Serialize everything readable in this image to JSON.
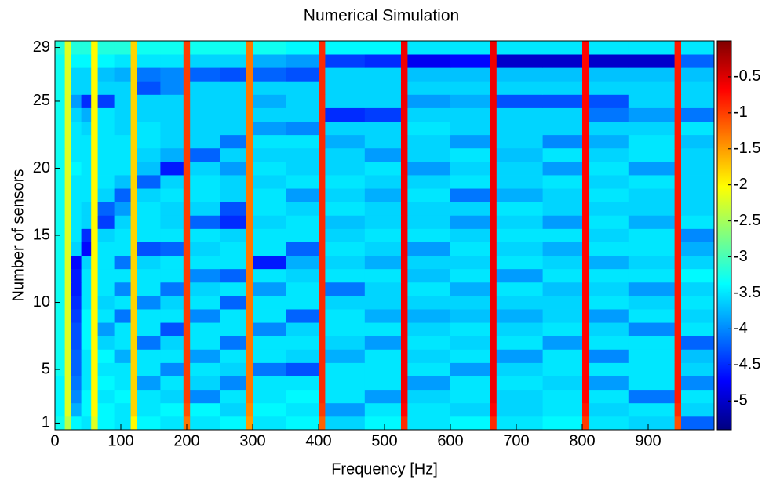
{
  "chart_data": {
    "type": "heatmap",
    "title": "Numerical Simulation",
    "x_label": "Frequency [Hz]",
    "y_label": "Number of sensors",
    "colormap": "jet",
    "clim": [
      -5.4,
      0
    ],
    "cticks": [
      -0.5,
      -1,
      -1.5,
      -2,
      -2.5,
      -3,
      -3.5,
      -4,
      -4.5,
      -5
    ],
    "xlim": [
      0,
      1000
    ],
    "xticks": [
      0,
      100,
      200,
      300,
      400,
      500,
      600,
      700,
      800,
      900
    ],
    "ylim": [
      0.5,
      29.5
    ],
    "yticks": [
      1,
      5,
      10,
      15,
      20,
      25,
      29
    ],
    "x_edges": [
      0,
      15,
      25,
      40,
      55,
      65,
      90,
      115,
      125,
      160,
      195,
      205,
      250,
      290,
      300,
      350,
      400,
      410,
      470,
      525,
      535,
      600,
      660,
      670,
      740,
      800,
      810,
      870,
      940,
      950,
      1000
    ],
    "y": [
      1,
      2,
      3,
      4,
      5,
      6,
      7,
      8,
      9,
      10,
      11,
      12,
      13,
      14,
      15,
      16,
      17,
      18,
      19,
      20,
      21,
      22,
      23,
      24,
      25,
      26,
      27,
      28,
      29
    ],
    "values": [
      [
        -3.3,
        -2.4,
        -3.4,
        -3.5,
        -2.2,
        -3.4,
        -3.5,
        -2.0,
        -3.4,
        -3.5,
        -1.3,
        -3.5,
        -3.4,
        -1.5,
        -3.5,
        -3.4,
        -1.2,
        -3.6,
        -3.4,
        -0.9,
        -3.5,
        -3.4,
        -0.9,
        -3.5,
        -3.4,
        -1.0,
        -3.5,
        -3.6,
        -1.1,
        -4.2
      ],
      [
        -3.4,
        -2.2,
        -3.8,
        -3.4,
        -2.0,
        -3.4,
        -3.5,
        -1.8,
        -3.5,
        -3.4,
        -1.1,
        -3.4,
        -3.6,
        -1.4,
        -3.4,
        -3.5,
        -1.0,
        -3.9,
        -3.5,
        -0.7,
        -3.5,
        -3.6,
        -0.7,
        -3.6,
        -3.5,
        -0.8,
        -3.6,
        -3.5,
        -0.9,
        -3.6
      ],
      [
        -3.4,
        -2.2,
        -4.0,
        -3.4,
        -2.0,
        -3.5,
        -3.4,
        -1.8,
        -3.5,
        -3.6,
        -1.0,
        -4.0,
        -3.5,
        -1.3,
        -3.5,
        -3.4,
        -0.9,
        -3.5,
        -3.9,
        -0.6,
        -3.6,
        -3.5,
        -0.6,
        -3.6,
        -3.5,
        -0.7,
        -3.5,
        -4.1,
        -0.8,
        -3.5
      ],
      [
        -3.4,
        -2.2,
        -4.1,
        -3.5,
        -2.0,
        -3.4,
        -3.5,
        -1.8,
        -3.9,
        -3.5,
        -1.0,
        -3.6,
        -4.0,
        -1.3,
        -3.5,
        -3.5,
        -0.9,
        -3.5,
        -3.5,
        -0.6,
        -3.9,
        -3.5,
        -0.6,
        -3.5,
        -3.6,
        -0.7,
        -3.9,
        -3.5,
        -0.8,
        -4.0
      ],
      [
        -3.3,
        -2.2,
        -4.2,
        -3.5,
        -2.0,
        -3.5,
        -3.5,
        -1.8,
        -3.5,
        -4.0,
        -1.0,
        -3.5,
        -3.6,
        -1.3,
        -4.1,
        -4.3,
        -0.9,
        -3.5,
        -3.5,
        -0.6,
        -3.5,
        -3.9,
        -0.6,
        -3.6,
        -3.5,
        -0.7,
        -3.5,
        -3.5,
        -0.8,
        -3.6
      ],
      [
        -3.3,
        -2.2,
        -4.2,
        -3.5,
        -2.0,
        -3.4,
        -3.8,
        -1.8,
        -3.5,
        -3.5,
        -1.0,
        -3.9,
        -3.5,
        -1.3,
        -3.5,
        -3.6,
        -0.9,
        -3.8,
        -3.5,
        -0.6,
        -3.6,
        -3.5,
        -0.6,
        -3.9,
        -3.5,
        -0.7,
        -4.0,
        -3.5,
        -0.8,
        -3.7
      ],
      [
        -3.3,
        -2.2,
        -4.3,
        -3.4,
        -2.0,
        -3.6,
        -3.5,
        -1.8,
        -4.1,
        -3.6,
        -1.0,
        -3.5,
        -4.1,
        -1.3,
        -3.5,
        -3.5,
        -0.9,
        -3.6,
        -3.9,
        -0.6,
        -3.5,
        -3.6,
        -0.6,
        -3.5,
        -3.9,
        -0.7,
        -3.5,
        -3.5,
        -0.8,
        -4.2
      ],
      [
        -3.3,
        -2.2,
        -4.3,
        -3.4,
        -2.0,
        -3.9,
        -3.5,
        -1.8,
        -3.5,
        -4.3,
        -1.0,
        -3.5,
        -3.5,
        -1.3,
        -4.0,
        -3.6,
        -0.9,
        -3.5,
        -3.5,
        -0.6,
        -3.6,
        -3.5,
        -0.6,
        -3.6,
        -3.5,
        -0.7,
        -3.6,
        -4.0,
        -0.8,
        -3.5
      ],
      [
        -3.3,
        -2.2,
        -4.4,
        -3.4,
        -2.0,
        -3.5,
        -4.1,
        -1.8,
        -3.5,
        -3.5,
        -1.0,
        -4.0,
        -3.5,
        -1.3,
        -3.5,
        -4.2,
        -0.9,
        -3.5,
        -3.8,
        -0.6,
        -3.8,
        -3.7,
        -0.6,
        -3.8,
        -3.6,
        -0.7,
        -3.9,
        -3.5,
        -0.8,
        -3.6
      ],
      [
        -3.3,
        -2.2,
        -4.5,
        -3.5,
        -2.0,
        -3.6,
        -3.5,
        -1.8,
        -4.0,
        -3.6,
        -1.0,
        -3.5,
        -4.2,
        -1.3,
        -3.5,
        -3.5,
        -0.9,
        -3.6,
        -3.6,
        -0.6,
        -3.6,
        -3.6,
        -0.6,
        -3.6,
        -3.6,
        -0.7,
        -3.5,
        -3.6,
        -0.8,
        -3.5
      ],
      [
        -3.3,
        -2.2,
        -4.6,
        -3.5,
        -2.0,
        -3.5,
        -4.0,
        -1.8,
        -3.5,
        -4.1,
        -1.0,
        -3.6,
        -3.5,
        -1.3,
        -3.9,
        -3.5,
        -0.9,
        -4.1,
        -3.6,
        -0.6,
        -3.5,
        -3.8,
        -0.6,
        -3.5,
        -3.7,
        -0.7,
        -3.6,
        -3.9,
        -0.8,
        -3.6
      ],
      [
        -3.3,
        -2.2,
        -4.6,
        -3.5,
        -2.0,
        -3.5,
        -3.5,
        -1.8,
        -3.5,
        -3.5,
        -1.0,
        -4.0,
        -4.2,
        -1.3,
        -3.5,
        -3.6,
        -0.9,
        -3.5,
        -3.5,
        -0.6,
        -3.7,
        -3.5,
        -0.6,
        -3.9,
        -3.5,
        -0.7,
        -3.5,
        -3.5,
        -0.8,
        -3.4
      ],
      [
        -3.3,
        -2.2,
        -4.7,
        -3.6,
        -2.0,
        -3.5,
        -4.1,
        -1.8,
        -3.6,
        -3.5,
        -1.0,
        -3.5,
        -3.5,
        -1.3,
        -4.6,
        -3.8,
        -0.9,
        -3.6,
        -3.8,
        -0.6,
        -3.6,
        -3.6,
        -0.6,
        -3.5,
        -3.6,
        -0.7,
        -3.8,
        -3.6,
        -0.8,
        -3.6
      ],
      [
        -3.3,
        -2.2,
        -3.6,
        -4.7,
        -2.0,
        -3.5,
        -3.5,
        -1.8,
        -4.3,
        -4.2,
        -1.0,
        -3.6,
        -3.5,
        -1.3,
        -3.5,
        -4.2,
        -0.9,
        -3.5,
        -3.6,
        -0.6,
        -3.9,
        -3.5,
        -0.6,
        -3.6,
        -3.8,
        -0.7,
        -3.5,
        -3.5,
        -0.8,
        -3.8
      ],
      [
        -3.3,
        -2.2,
        -3.5,
        -4.5,
        -2.0,
        -3.6,
        -3.5,
        -1.8,
        -3.5,
        -3.5,
        -1.0,
        -3.5,
        -3.6,
        -1.3,
        -3.5,
        -3.5,
        -0.9,
        -3.6,
        -3.5,
        -0.6,
        -3.5,
        -3.6,
        -0.6,
        -3.5,
        -3.5,
        -0.7,
        -3.6,
        -3.5,
        -0.8,
        -4.0
      ],
      [
        -3.3,
        -2.2,
        -3.5,
        -3.6,
        -2.0,
        -4.4,
        -3.6,
        -1.8,
        -3.5,
        -3.6,
        -1.0,
        -4.2,
        -4.5,
        -1.3,
        -3.6,
        -3.5,
        -0.9,
        -3.7,
        -3.6,
        -0.6,
        -3.6,
        -3.9,
        -0.6,
        -3.6,
        -3.9,
        -0.7,
        -3.5,
        -3.8,
        -0.8,
        -3.5
      ],
      [
        -3.3,
        -2.2,
        -3.5,
        -3.6,
        -2.0,
        -4.2,
        -3.9,
        -1.8,
        -3.5,
        -3.6,
        -1.0,
        -3.6,
        -4.3,
        -1.3,
        -3.5,
        -3.6,
        -0.9,
        -3.5,
        -3.6,
        -0.6,
        -3.6,
        -3.6,
        -0.6,
        -3.5,
        -3.6,
        -0.7,
        -3.6,
        -3.6,
        -0.8,
        -3.6
      ],
      [
        -3.3,
        -2.2,
        -3.5,
        -3.5,
        -2.0,
        -3.6,
        -4.2,
        -1.8,
        -3.6,
        -3.5,
        -1.0,
        -3.5,
        -3.6,
        -1.3,
        -3.5,
        -3.9,
        -0.9,
        -3.6,
        -3.8,
        -0.6,
        -3.5,
        -4.1,
        -0.6,
        -3.8,
        -3.6,
        -0.7,
        -3.5,
        -3.6,
        -0.8,
        -3.6
      ],
      [
        -3.3,
        -2.2,
        -3.5,
        -3.5,
        -2.0,
        -3.5,
        -3.7,
        -1.8,
        -4.2,
        -3.6,
        -1.0,
        -3.5,
        -3.6,
        -1.3,
        -3.6,
        -3.5,
        -0.9,
        -3.5,
        -3.6,
        -0.6,
        -3.6,
        -3.5,
        -0.6,
        -3.6,
        -3.5,
        -0.7,
        -3.6,
        -3.5,
        -0.8,
        -3.6
      ],
      [
        -3.3,
        -2.2,
        -3.4,
        -3.5,
        -2.0,
        -3.5,
        -3.5,
        -1.8,
        -3.7,
        -4.6,
        -1.0,
        -3.6,
        -3.9,
        -1.3,
        -3.5,
        -3.6,
        -0.9,
        -3.6,
        -3.5,
        -0.6,
        -3.9,
        -3.6,
        -0.6,
        -3.6,
        -3.9,
        -0.7,
        -3.5,
        -3.9,
        -0.8,
        -3.6
      ],
      [
        -3.3,
        -2.2,
        -3.5,
        -3.5,
        -2.0,
        -3.5,
        -3.5,
        -1.8,
        -3.6,
        -3.8,
        -1.0,
        -4.2,
        -3.6,
        -1.3,
        -3.6,
        -3.6,
        -0.9,
        -3.6,
        -3.9,
        -0.6,
        -3.6,
        -3.5,
        -0.6,
        -3.7,
        -3.5,
        -0.7,
        -3.6,
        -3.5,
        -0.8,
        -3.6
      ],
      [
        -3.3,
        -2.2,
        -3.5,
        -3.5,
        -2.0,
        -3.5,
        -3.5,
        -1.8,
        -3.5,
        -3.6,
        -1.0,
        -3.6,
        -4.1,
        -1.3,
        -3.5,
        -3.5,
        -0.9,
        -3.8,
        -3.6,
        -0.6,
        -3.6,
        -3.9,
        -0.6,
        -3.6,
        -4.0,
        -0.7,
        -3.8,
        -3.5,
        -0.8,
        -3.7
      ],
      [
        -3.3,
        -2.2,
        -3.5,
        -3.6,
        -2.0,
        -3.5,
        -3.6,
        -1.8,
        -3.5,
        -3.6,
        -1.0,
        -3.6,
        -3.6,
        -1.3,
        -3.9,
        -4.0,
        -0.9,
        -3.6,
        -3.6,
        -0.6,
        -3.5,
        -3.6,
        -0.6,
        -3.6,
        -3.6,
        -0.7,
        -3.6,
        -3.6,
        -0.8,
        -3.5
      ],
      [
        -3.3,
        -2.2,
        -3.6,
        -3.8,
        -2.0,
        -3.5,
        -3.6,
        -1.8,
        -3.6,
        -3.6,
        -1.0,
        -3.6,
        -3.6,
        -1.3,
        -3.6,
        -3.6,
        -0.9,
        -4.5,
        -4.4,
        -0.6,
        -3.6,
        -3.6,
        -0.6,
        -3.6,
        -3.6,
        -0.7,
        -4.1,
        -3.9,
        -0.8,
        -4.1
      ],
      [
        -3.3,
        -2.2,
        -3.9,
        -4.5,
        -2.0,
        -4.4,
        -3.6,
        -1.8,
        -3.6,
        -3.6,
        -1.0,
        -3.6,
        -3.6,
        -1.3,
        -3.8,
        -3.6,
        -0.9,
        -3.6,
        -3.6,
        -0.6,
        -3.9,
        -3.8,
        -0.6,
        -4.3,
        -4.3,
        -0.7,
        -4.3,
        -3.6,
        -0.8,
        -3.6
      ],
      [
        -3.3,
        -2.2,
        -3.6,
        -3.6,
        -2.0,
        -3.6,
        -3.6,
        -1.8,
        -4.3,
        -4.0,
        -1.0,
        -3.6,
        -3.6,
        -1.3,
        -3.6,
        -3.6,
        -0.9,
        -3.6,
        -3.6,
        -0.6,
        -3.6,
        -3.6,
        -0.6,
        -3.6,
        -3.6,
        -0.7,
        -3.6,
        -3.6,
        -0.8,
        -3.6
      ],
      [
        -3.3,
        -2.2,
        -3.6,
        -3.6,
        -2.0,
        -3.7,
        -3.8,
        -1.8,
        -4.1,
        -4.0,
        -1.0,
        -4.2,
        -4.3,
        -1.3,
        -4.2,
        -4.3,
        -0.9,
        -3.6,
        -3.6,
        -0.6,
        -3.7,
        -3.7,
        -0.6,
        -3.7,
        -3.7,
        -0.7,
        -3.7,
        -3.7,
        -0.8,
        -3.7
      ],
      [
        -3.3,
        -2.2,
        -3.4,
        -3.4,
        -2.0,
        -3.4,
        -3.5,
        -1.8,
        -3.5,
        -3.5,
        -1.0,
        -3.6,
        -3.6,
        -1.3,
        -3.8,
        -3.9,
        -0.9,
        -4.4,
        -4.5,
        -0.6,
        -4.8,
        -4.7,
        -0.6,
        -5.0,
        -5.0,
        -0.7,
        -5.0,
        -5.0,
        -0.8,
        -4.2
      ],
      [
        -3.2,
        -2.2,
        -3.2,
        -3.2,
        -2.0,
        -3.2,
        -3.2,
        -1.8,
        -3.3,
        -3.3,
        -1.0,
        -3.3,
        -3.3,
        -1.3,
        -3.3,
        -3.4,
        -0.9,
        -3.4,
        -3.4,
        -0.6,
        -3.5,
        -3.5,
        -0.6,
        -3.5,
        -3.5,
        -0.7,
        -3.5,
        -3.5,
        -0.8,
        -3.5
      ]
    ]
  }
}
